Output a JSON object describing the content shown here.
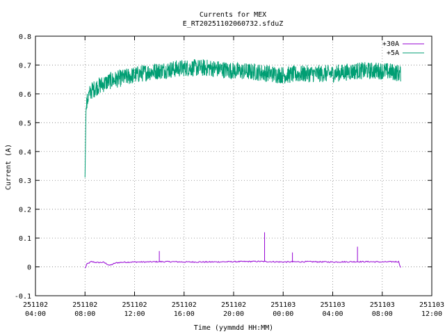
{
  "chart_data": {
    "type": "line",
    "title": "Currents for MEX",
    "subtitle": "E_RT20251102060732.sfduZ",
    "xlabel": "Time (yymmdd HH:MM)",
    "ylabel": "Current (A)",
    "xlim": [
      "2025-11-02 04:00",
      "2025-11-03 12:00"
    ],
    "ylim": [
      -0.1,
      0.8
    ],
    "grid": true,
    "legend_position": "top-right",
    "x_ticks": [
      {
        "date": "251102",
        "time": "04:00"
      },
      {
        "date": "251102",
        "time": "08:00"
      },
      {
        "date": "251102",
        "time": "12:00"
      },
      {
        "date": "251102",
        "time": "16:00"
      },
      {
        "date": "251102",
        "time": "20:00"
      },
      {
        "date": "251103",
        "time": "00:00"
      },
      {
        "date": "251103",
        "time": "04:00"
      },
      {
        "date": "251103",
        "time": "08:00"
      },
      {
        "date": "251103",
        "time": "12:00"
      }
    ],
    "y_ticks": [
      "-0.1",
      "0",
      "0.1",
      "0.2",
      "0.3",
      "0.4",
      "0.5",
      "0.6",
      "0.7",
      "0.8"
    ],
    "series": [
      {
        "name": "+30A",
        "color": "#9400d3",
        "x": [
          "2025-11-02 08:00",
          "2025-11-02 08:10",
          "2025-11-02 08:30",
          "2025-11-02 09:00",
          "2025-11-02 09:30",
          "2025-11-02 10:00",
          "2025-11-02 10:30",
          "2025-11-02 11:00",
          "2025-11-02 12:00",
          "2025-11-02 13:00",
          "2025-11-02 14:00",
          "2025-11-02 15:00",
          "2025-11-02 16:00",
          "2025-11-02 18:00",
          "2025-11-02 20:00",
          "2025-11-02 22:00",
          "2025-11-03 00:00",
          "2025-11-03 02:00",
          "2025-11-03 04:00",
          "2025-11-03 06:00",
          "2025-11-03 07:00",
          "2025-11-03 08:00",
          "2025-11-03 09:00",
          "2025-11-03 09:20",
          "2025-11-03 09:30"
        ],
        "values": [
          -0.005,
          0.01,
          0.018,
          0.015,
          0.016,
          0.005,
          0.014,
          0.016,
          0.017,
          0.017,
          0.018,
          0.018,
          0.017,
          0.017,
          0.018,
          0.019,
          0.017,
          0.018,
          0.017,
          0.018,
          0.018,
          0.017,
          0.018,
          0.018,
          -0.005
        ],
        "spikes": [
          {
            "x": "2025-11-02 14:00",
            "value": 0.055
          },
          {
            "x": "2025-11-02 22:30",
            "value": 0.12
          },
          {
            "x": "2025-11-03 00:45",
            "value": 0.05
          },
          {
            "x": "2025-11-03 06:00",
            "value": 0.07
          }
        ]
      },
      {
        "name": "+5A",
        "color": "#009e73",
        "x": [
          "2025-11-02 08:00",
          "2025-11-02 08:05",
          "2025-11-02 08:15",
          "2025-11-02 08:30",
          "2025-11-02 09:00",
          "2025-11-02 09:30",
          "2025-11-02 10:00",
          "2025-11-02 10:30",
          "2025-11-02 11:00",
          "2025-11-02 12:00",
          "2025-11-02 13:00",
          "2025-11-02 14:00",
          "2025-11-02 15:00",
          "2025-11-02 16:00",
          "2025-11-02 18:00",
          "2025-11-02 20:00",
          "2025-11-02 22:00",
          "2025-11-03 00:00",
          "2025-11-03 02:00",
          "2025-11-03 04:00",
          "2025-11-03 06:00",
          "2025-11-03 08:00",
          "2025-11-03 09:00",
          "2025-11-03 09:30"
        ],
        "values": [
          0.31,
          0.55,
          0.59,
          0.61,
          0.625,
          0.635,
          0.645,
          0.65,
          0.655,
          0.665,
          0.675,
          0.68,
          0.685,
          0.69,
          0.69,
          0.68,
          0.675,
          0.665,
          0.67,
          0.67,
          0.68,
          0.68,
          0.675,
          0.67
        ],
        "noise_amplitude": 0.03
      }
    ]
  }
}
